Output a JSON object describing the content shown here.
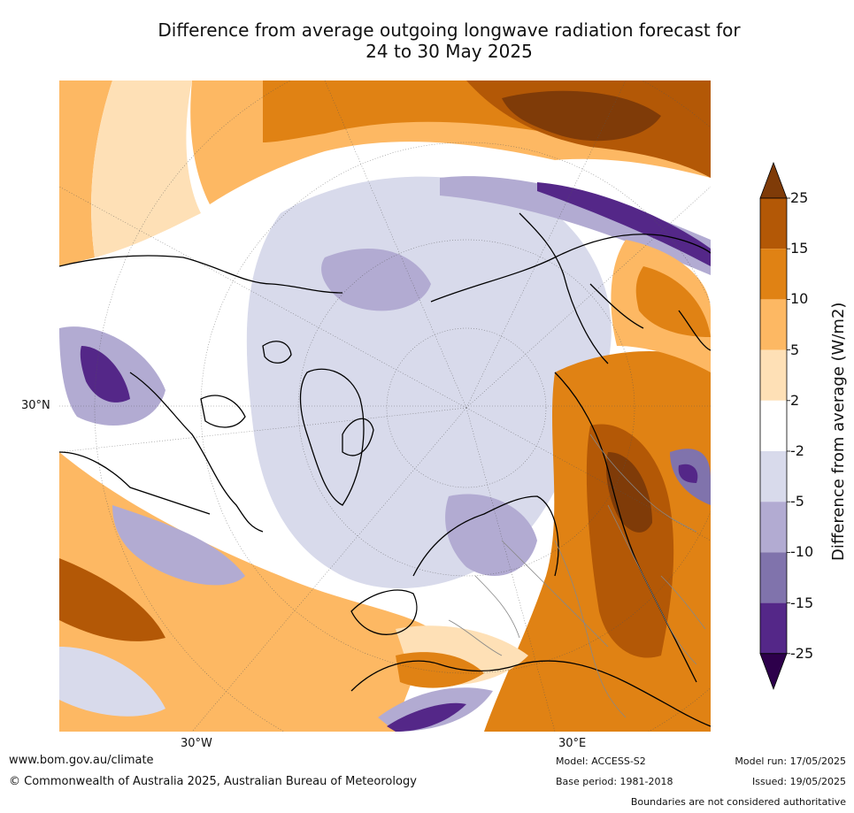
{
  "title": {
    "line1": "Difference from average outgoing longwave radiation forecast for",
    "line2": "24 to 30 May 2025"
  },
  "map": {
    "lat_label": "30°N",
    "lon_labels": {
      "west": "30°W",
      "east": "30°E"
    },
    "palette": {
      "dark_brown": "#7f3b08",
      "brown": "#b35806",
      "orange": "#e08214",
      "light_orange": "#fdb863",
      "peach": "#fee0b6",
      "white": "#ffffff",
      "lavender": "#d8daeb",
      "light_purple": "#b2abd2",
      "purple": "#8073ac",
      "dark_purple": "#542788",
      "deep_purple": "#2d004b"
    }
  },
  "colorbar": {
    "title": "Difference from average (W/m2)",
    "ticks": [
      "25",
      "15",
      "10",
      "5",
      "2",
      "-2",
      "-5",
      "-10",
      "-15",
      "-25"
    ],
    "colors": [
      "#7f3b08",
      "#b35806",
      "#e08214",
      "#fdb863",
      "#fee0b6",
      "#ffffff",
      "#d8daeb",
      "#b2abd2",
      "#8073ac",
      "#542788",
      "#2d004b"
    ]
  },
  "footer": {
    "url": "www.bom.gov.au/climate",
    "copyright": "© Commonwealth of Australia 2025, Australian Bureau of Meteorology",
    "model": "Model: ACCESS-S2",
    "base_period": "Base period: 1981-2018",
    "model_run": "Model run: 17/05/2025",
    "issued": "Issued: 19/05/2025",
    "disclaimer": "Boundaries are not considered authoritative"
  }
}
